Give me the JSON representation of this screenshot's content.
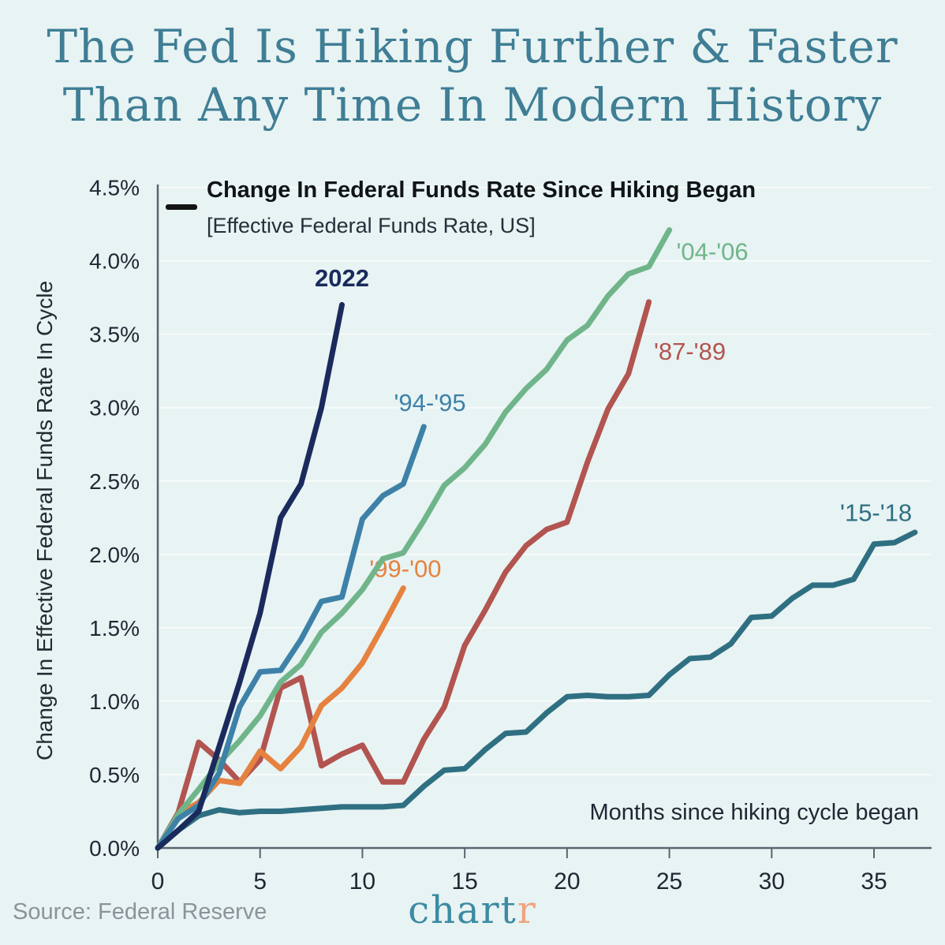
{
  "title": {
    "line1": "The Fed Is Hiking Further & Faster",
    "line2": "Than Any Time In Modern History"
  },
  "legend": {
    "swatch_color": "#141414",
    "title": "Change In Federal Funds Rate Since Hiking Began",
    "subtitle": "[Effective Federal Funds Rate, US]"
  },
  "footer": {
    "source": "Source: Federal Reserve",
    "logo_main": "chart",
    "logo_accent": "r"
  },
  "colors": {
    "background": "#e8f3f3",
    "title_teal": "#3f7e95",
    "axis_gray": "#5a6570",
    "gridline": "#f6fbfa",
    "tick_text": "#1f2733",
    "source_gray": "#8b939b",
    "logo_teal": "#3b8ba3",
    "logo_salmon": "#efa57f"
  },
  "chart_data": {
    "type": "line",
    "title": "Change In Federal Funds Rate Since Hiking Began",
    "subtitle": "[Effective Federal Funds Rate, US]",
    "xlabel": "Months since hiking cycle began",
    "ylabel": "Change In Effective Federal Funds Rate In Cycle",
    "xlim": [
      0,
      37.8
    ],
    "ylim": [
      0,
      4.52
    ],
    "grid": "horizontal gridlines every 0.5%",
    "legend_position": "top-left, single black dash swatch",
    "x_note": "x value = months since hiking cycle began; array index = month",
    "x_tick_values": [
      0,
      5,
      10,
      15,
      20,
      25,
      30,
      35
    ],
    "x_tick_labels": [
      "0",
      "5",
      "10",
      "15",
      "20",
      "25",
      "30",
      "35"
    ],
    "y_tick_values": [
      0,
      0.5,
      1,
      1.5,
      2,
      2.5,
      3,
      3.5,
      4,
      4.5
    ],
    "y_tick_labels": [
      "0.0%",
      "0.5%",
      "1.0%",
      "1.5%",
      "2.0%",
      "2.5%",
      "3.0%",
      "3.5%",
      "4.0%",
      "4.5%"
    ],
    "series": [
      {
        "name": "'87-'89",
        "color": "#b25450",
        "label_x": 26.0,
        "label_y": 3.38,
        "bold": false,
        "values": [
          0,
          0.24,
          0.72,
          0.6,
          0.45,
          0.6,
          1.09,
          1.16,
          0.56,
          0.64,
          0.7,
          0.45,
          0.45,
          0.74,
          0.96,
          1.38,
          1.62,
          1.88,
          2.06,
          2.17,
          2.22,
          2.63,
          2.99,
          3.23,
          3.72
        ]
      },
      {
        "name": "'99-'00",
        "color": "#e5823f",
        "label_x": 12.1,
        "label_y": 1.9,
        "bold": false,
        "values": [
          0,
          0.23,
          0.31,
          0.46,
          0.44,
          0.66,
          0.54,
          0.69,
          0.97,
          1.09,
          1.26,
          1.51,
          1.77
        ]
      },
      {
        "name": "'04-'06",
        "color": "#70b58a",
        "label_x": 27.1,
        "label_y": 4.06,
        "bold": false,
        "values": [
          0,
          0.23,
          0.4,
          0.58,
          0.73,
          0.9,
          1.13,
          1.25,
          1.47,
          1.6,
          1.76,
          1.97,
          2.01,
          2.23,
          2.47,
          2.59,
          2.75,
          2.97,
          3.13,
          3.26,
          3.46,
          3.56,
          3.76,
          3.91,
          3.96,
          4.21
        ]
      },
      {
        "name": "'94-'95",
        "color": "#3e81a8",
        "label_x": 13.3,
        "label_y": 3.03,
        "bold": false,
        "values": [
          0,
          0.2,
          0.29,
          0.51,
          0.96,
          1.2,
          1.21,
          1.42,
          1.68,
          1.71,
          2.24,
          2.4,
          2.48,
          2.87
        ]
      },
      {
        "name": "'15-'18",
        "color": "#2f6f82",
        "label_x": 35.1,
        "label_y": 2.28,
        "bold": false,
        "values": [
          0,
          0.12,
          0.22,
          0.26,
          0.24,
          0.25,
          0.25,
          0.26,
          0.27,
          0.28,
          0.28,
          0.28,
          0.29,
          0.42,
          0.53,
          0.54,
          0.67,
          0.78,
          0.79,
          0.92,
          1.03,
          1.04,
          1.03,
          1.03,
          1.04,
          1.18,
          1.29,
          1.3,
          1.39,
          1.57,
          1.58,
          1.7,
          1.79,
          1.79,
          1.83,
          2.07,
          2.08,
          2.15
        ]
      },
      {
        "name": "2022",
        "color": "#1a2a5c",
        "label_x": 9.0,
        "label_y": 3.88,
        "bold": true,
        "values": [
          0,
          0.12,
          0.25,
          0.69,
          1.13,
          1.6,
          2.25,
          2.48,
          3.0,
          3.7
        ]
      }
    ]
  }
}
